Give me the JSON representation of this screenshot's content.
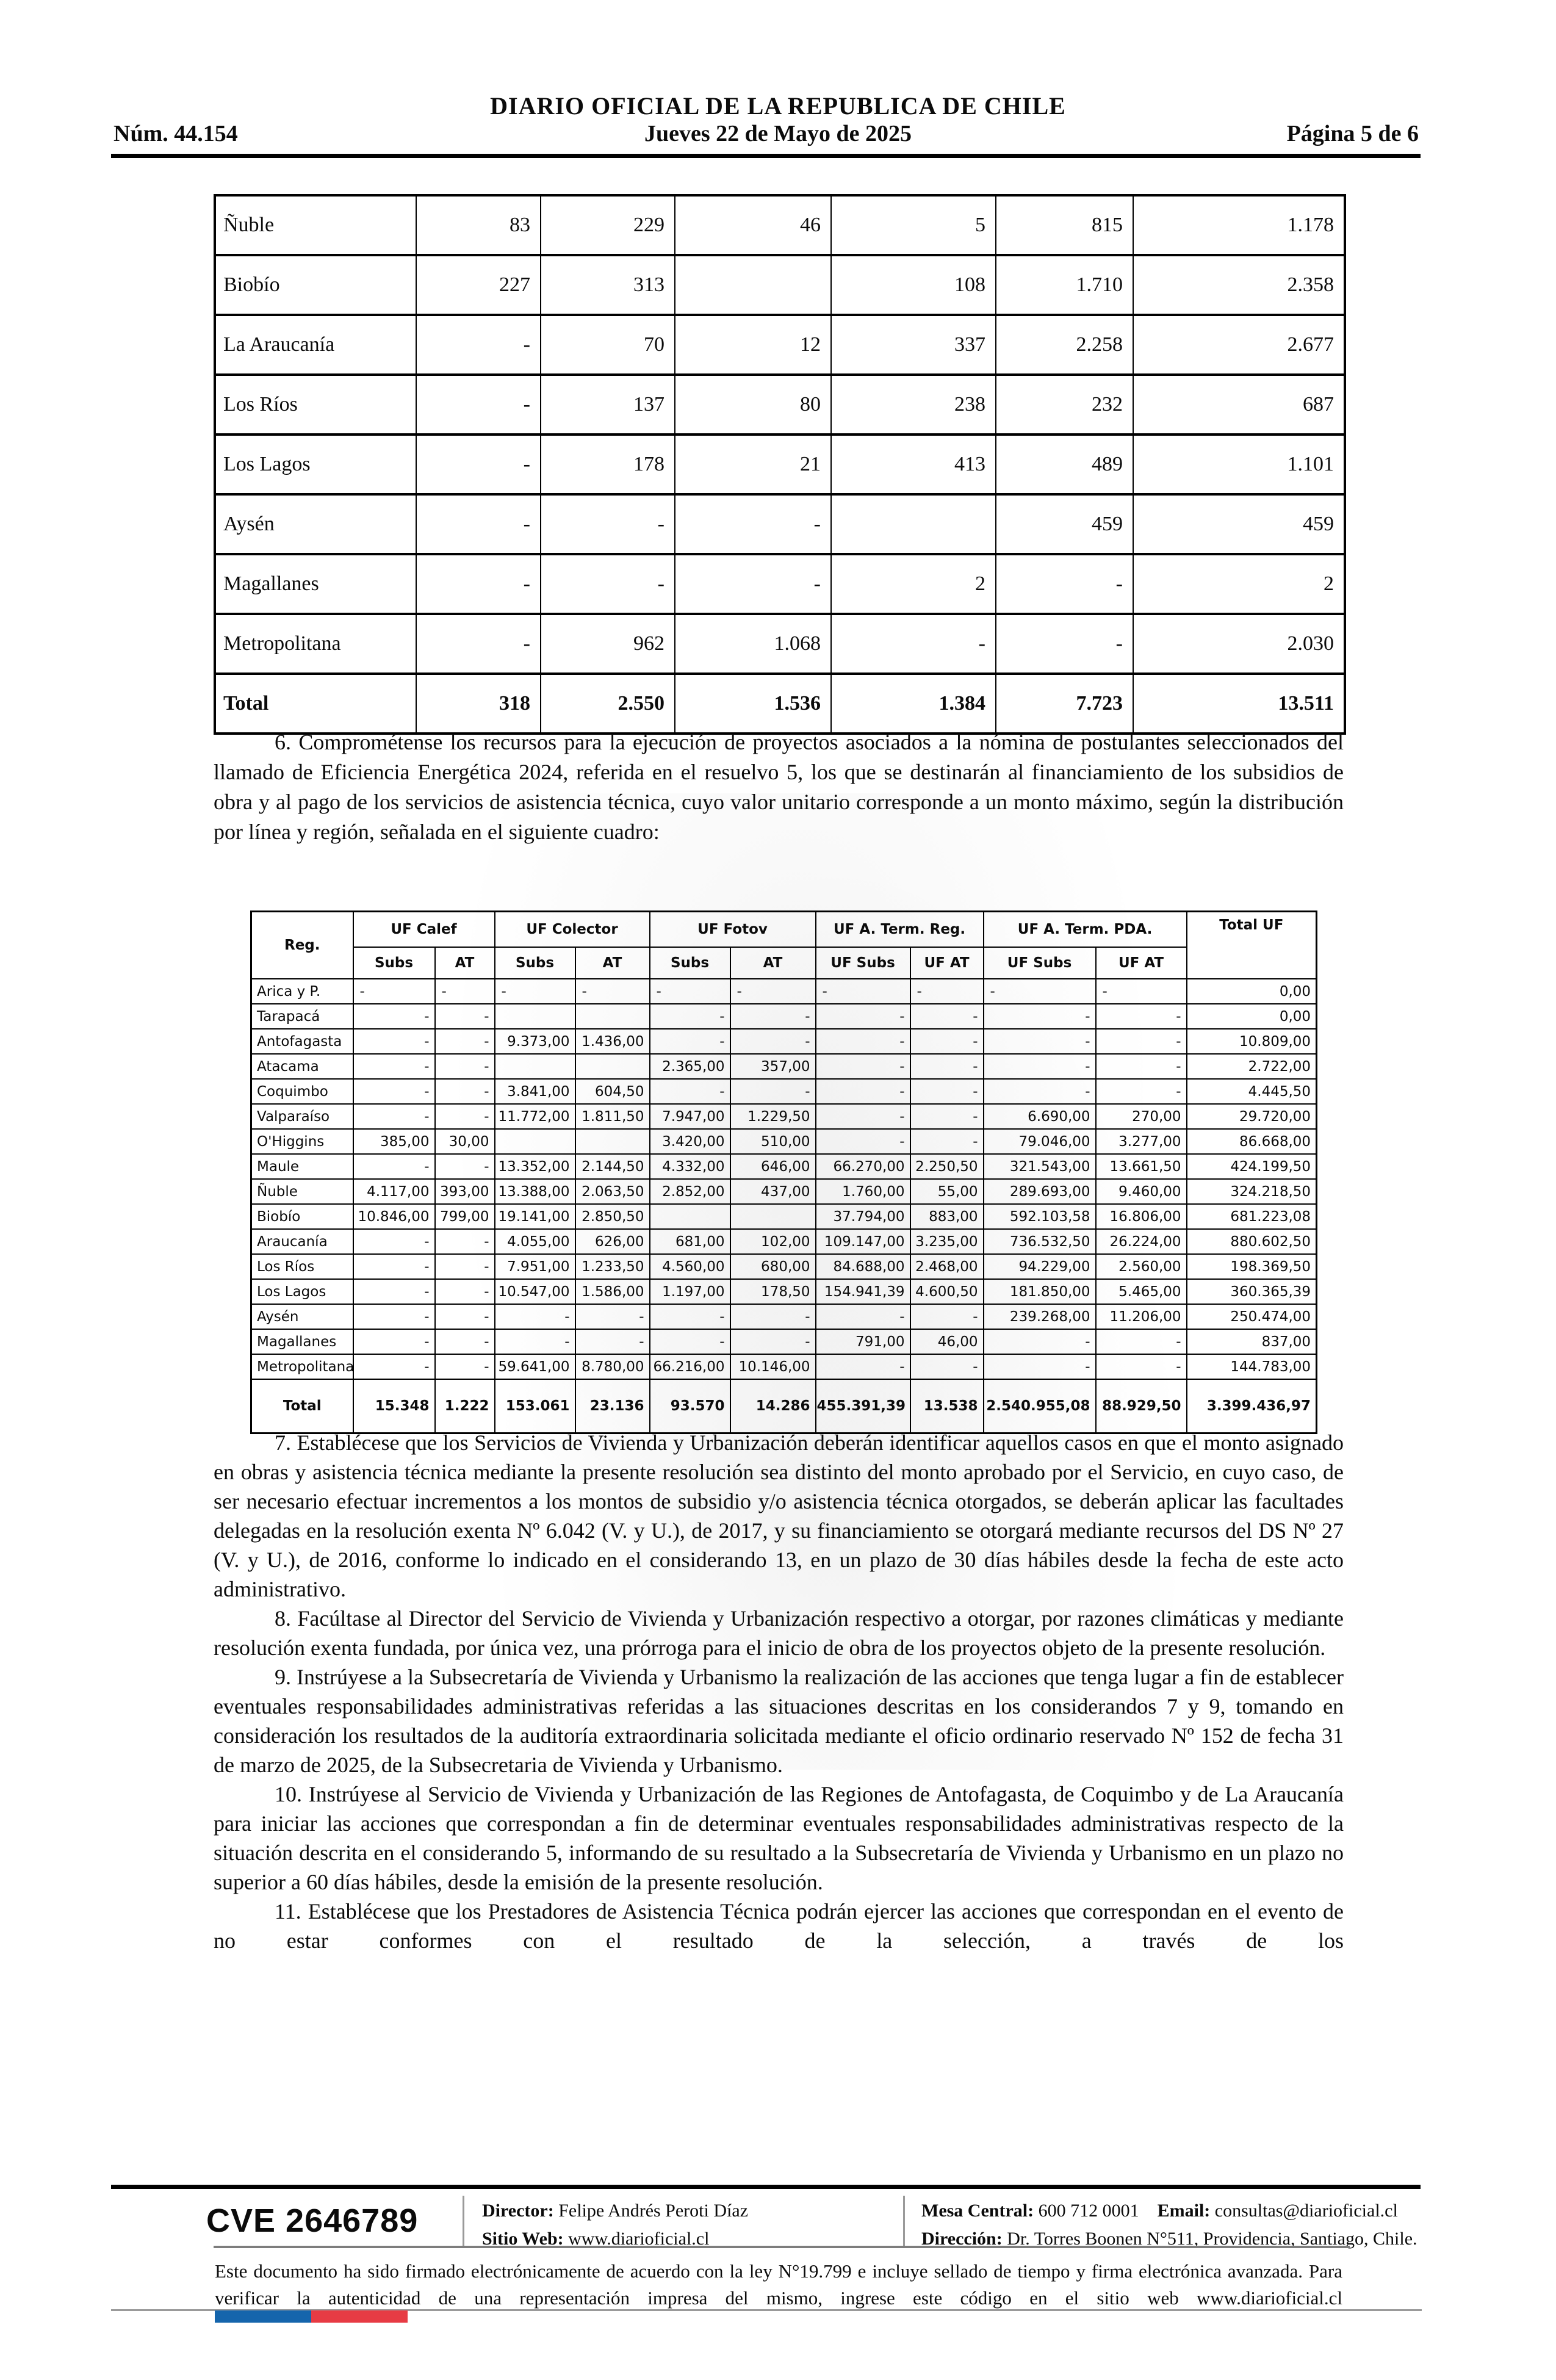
{
  "header": {
    "num": "Núm. 44.154",
    "title": "DIARIO OFICIAL DE LA REPUBLICA DE CHILE",
    "date": "Jueves 22 de Mayo de 2025",
    "page": "Página 5 de 6"
  },
  "table1": {
    "rows": [
      {
        "region": "Ñuble",
        "values": [
          "83",
          "229",
          "46",
          "5",
          "815",
          "1.178"
        ]
      },
      {
        "region": "Biobío",
        "values": [
          "227",
          "313",
          "",
          "108",
          "1.710",
          "2.358"
        ]
      },
      {
        "region": "La Araucanía",
        "values": [
          "-",
          "70",
          "12",
          "337",
          "2.258",
          "2.677"
        ]
      },
      {
        "region": "Los Ríos",
        "values": [
          "-",
          "137",
          "80",
          "238",
          "232",
          "687"
        ]
      },
      {
        "region": "Los Lagos",
        "values": [
          "-",
          "178",
          "21",
          "413",
          "489",
          "1.101"
        ]
      },
      {
        "region": "Aysén",
        "values": [
          "-",
          "-",
          "-",
          "",
          "459",
          "459"
        ]
      },
      {
        "region": "Magallanes",
        "values": [
          "-",
          "-",
          "-",
          "2",
          "-",
          "2"
        ]
      },
      {
        "region": "Metropolitana",
        "values": [
          "-",
          "962",
          "1.068",
          "-",
          "-",
          "2.030"
        ]
      },
      {
        "region": "Total",
        "values": [
          "318",
          "2.550",
          "1.536",
          "1.384",
          "7.723",
          "13.511"
        ],
        "bold": true
      }
    ]
  },
  "paragraph6": "6. Comprométense los recursos para la ejecución de proyectos asociados a la nómina de postulantes seleccionados del llamado de Eficiencia Energética 2024, referida en el resuelvo 5, los que se destinarán al financiamiento de los subsidios de obra y al pago de los servicios de asistencia técnica, cuyo valor unitario corresponde a un monto máximo, según la distribución por línea y región, señalada en el siguiente cuadro:",
  "table2": {
    "reg_label": "Reg.",
    "total_label": "Total UF",
    "groups": [
      "UF Calef",
      "UF Colector",
      "UF Fotov",
      "UF A. Term. Reg.",
      "UF A. Term. PDA."
    ],
    "subheaders": [
      "Subs",
      "AT",
      "Subs",
      "AT",
      "Subs",
      "AT",
      "UF Subs",
      "UF AT",
      "UF Subs",
      "UF AT"
    ],
    "rows": [
      {
        "region": "Arica y P.",
        "align": "left",
        "values": [
          "-",
          "-",
          "-",
          "-",
          "-",
          "-",
          "-",
          "-",
          "-",
          "-",
          "0,00"
        ]
      },
      {
        "region": "Tarapacá",
        "values": [
          "-",
          "-",
          "",
          "",
          "-",
          "-",
          "-",
          "-",
          "-",
          "-",
          "0,00"
        ]
      },
      {
        "region": "Antofagasta",
        "values": [
          "-",
          "-",
          "9.373,00",
          "1.436,00",
          "-",
          "-",
          "-",
          "-",
          "-",
          "-",
          "10.809,00"
        ]
      },
      {
        "region": "Atacama",
        "values": [
          "-",
          "-",
          "",
          "",
          "2.365,00",
          "357,00",
          "-",
          "-",
          "-",
          "-",
          "2.722,00"
        ]
      },
      {
        "region": "Coquimbo",
        "values": [
          "-",
          "-",
          "3.841,00",
          "604,50",
          "-",
          "-",
          "-",
          "-",
          "-",
          "-",
          "4.445,50"
        ]
      },
      {
        "region": "Valparaíso",
        "values": [
          "-",
          "-",
          "11.772,00",
          "1.811,50",
          "7.947,00",
          "1.229,50",
          "-",
          "-",
          "6.690,00",
          "270,00",
          "29.720,00"
        ]
      },
      {
        "region": "O'Higgins",
        "values": [
          "385,00",
          "30,00",
          "",
          "",
          "3.420,00",
          "510,00",
          "-",
          "-",
          "79.046,00",
          "3.277,00",
          "86.668,00"
        ]
      },
      {
        "region": "Maule",
        "values": [
          "-",
          "-",
          "13.352,00",
          "2.144,50",
          "4.332,00",
          "646,00",
          "66.270,00",
          "2.250,50",
          "321.543,00",
          "13.661,50",
          "424.199,50"
        ]
      },
      {
        "region": "Ñuble",
        "values": [
          "4.117,00",
          "393,00",
          "13.388,00",
          "2.063,50",
          "2.852,00",
          "437,00",
          "1.760,00",
          "55,00",
          "289.693,00",
          "9.460,00",
          "324.218,50"
        ]
      },
      {
        "region": "Biobío",
        "values": [
          "10.846,00",
          "799,00",
          "19.141,00",
          "2.850,50",
          "",
          "",
          "37.794,00",
          "883,00",
          "592.103,58",
          "16.806,00",
          "681.223,08"
        ]
      },
      {
        "region": "Araucanía",
        "values": [
          "-",
          "-",
          "4.055,00",
          "626,00",
          "681,00",
          "102,00",
          "109.147,00",
          "3.235,00",
          "736.532,50",
          "26.224,00",
          "880.602,50"
        ]
      },
      {
        "region": "Los Ríos",
        "values": [
          "-",
          "-",
          "7.951,00",
          "1.233,50",
          "4.560,00",
          "680,00",
          "84.688,00",
          "2.468,00",
          "94.229,00",
          "2.560,00",
          "198.369,50"
        ]
      },
      {
        "region": "Los Lagos",
        "values": [
          "-",
          "-",
          "10.547,00",
          "1.586,00",
          "1.197,00",
          "178,50",
          "154.941,39",
          "4.600,50",
          "181.850,00",
          "5.465,00",
          "360.365,39"
        ]
      },
      {
        "region": "Aysén",
        "values": [
          "-",
          "-",
          "-",
          "-",
          "-",
          "-",
          "-",
          "-",
          "239.268,00",
          "11.206,00",
          "250.474,00"
        ]
      },
      {
        "region": "Magallanes",
        "values": [
          "-",
          "-",
          "-",
          "-",
          "-",
          "-",
          "791,00",
          "46,00",
          "-",
          "-",
          "837,00"
        ]
      },
      {
        "region": "Metropolitana",
        "values": [
          "-",
          "-",
          "59.641,00",
          "8.780,00",
          "66.216,00",
          "10.146,00",
          "-",
          "-",
          "-",
          "-",
          "144.783,00"
        ]
      }
    ],
    "total_row": {
      "label": "Total",
      "values": [
        "15.348",
        "1.222",
        "153.061",
        "23.136",
        "93.570",
        "14.286",
        "455.391,39",
        "13.538",
        "2.540.955,08",
        "88.929,50",
        "3.399.436,97"
      ]
    }
  },
  "paragraphs": [
    {
      "text": "7. Establécese que los Servicios de Vivienda y Urbanización deberán identificar aquellos casos en que el monto asignado en obras y asistencia técnica mediante la presente resolución sea distinto del monto aprobado por el Servicio, en cuyo caso, de ser necesario efectuar incrementos a los montos de subsidio y/o asistencia técnica otorgados, se deberán aplicar las facultades delegadas en la resolución exenta Nº 6.042 (V. y U.), de 2017, y su financiamiento se otorgará mediante recursos del DS Nº 27 (V. y U.), de 2016, conforme lo indicado en el considerando 13, en un plazo de 30 días hábiles desde la fecha de este acto administrativo."
    },
    {
      "text": "8. Facúltase al Director del Servicio de Vivienda y Urbanización respectivo a otorgar, por razones climáticas y mediante resolución exenta fundada, por única vez, una prórroga para el inicio de obra de los proyectos objeto de la presente resolución."
    },
    {
      "text": "9. Instrúyese a la Subsecretaría de Vivienda y Urbanismo la realización de las acciones que tenga lugar a fin de establecer eventuales responsabilidades administrativas referidas a las situaciones descritas en los considerandos 7 y 9, tomando en consideración los resultados de la auditoría extraordinaria solicitada mediante el oficio ordinario reservado Nº 152 de fecha 31 de marzo de 2025, de la Subsecretaria de Vivienda y Urbanismo."
    },
    {
      "text": "10. Instrúyese al Servicio de Vivienda y Urbanización de las Regiones de Antofagasta, de Coquimbo y de La Araucanía para iniciar las acciones que correspondan a fin de determinar eventuales responsabilidades administrativas respecto de la situación descrita en el considerando 5, informando de su resultado a la Subsecretaría de Vivienda y Urbanismo en un plazo no superior a 60 días hábiles, desde la emisión de la presente resolución."
    },
    {
      "text": "11. Establécese que los Prestadores de Asistencia Técnica podrán ejercer las acciones que correspondan en el evento de no estar conformes con el resultado de la selección, a través de los",
      "justify_last": true
    }
  ],
  "footer": {
    "cve": "CVE 2646789",
    "director_label": "Director:",
    "director": "Felipe Andrés Peroti Díaz",
    "sitio_label": "Sitio Web:",
    "sitio": "www.diarioficial.cl",
    "mesa_label": "Mesa Central:",
    "mesa": "600 712 0001",
    "email_label": "Email:",
    "email": "consultas@diarioficial.cl",
    "direccion_label": "Dirección:",
    "direccion": "Dr. Torres Boonen N°511, Providencia, Santiago, Chile.",
    "legal": "Este documento ha sido firmado electrónicamente de acuerdo con la ley N°19.799 e incluye sellado de tiempo y firma electrónica avanzada. Para verificar la autenticidad de una representación impresa del mismo, ingrese este código en el sitio web www.diarioficial.cl"
  }
}
